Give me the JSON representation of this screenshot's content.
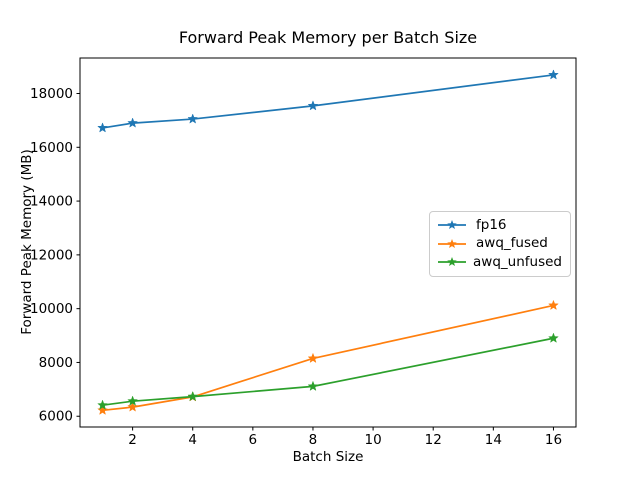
{
  "figure": {
    "background": "#ffffff",
    "text_color": "#000000",
    "spine_color": "#000000"
  },
  "chart_data": {
    "type": "line",
    "title": "Forward Peak Memory per Batch Size",
    "xlabel": "Batch Size",
    "ylabel": "Forward Peak Memory (MB)",
    "x": [
      1,
      2,
      4,
      8,
      16
    ],
    "series": [
      {
        "name": "fp16",
        "color": "#1f77b4",
        "marker": "star",
        "values": [
          16720,
          16900,
          17050,
          17540,
          18690
        ]
      },
      {
        "name": "awq_fused",
        "color": "#ff7f0e",
        "marker": "star",
        "values": [
          6220,
          6340,
          6720,
          8150,
          10120
        ]
      },
      {
        "name": "awq_unfused",
        "color": "#2ca02c",
        "marker": "star",
        "values": [
          6410,
          6560,
          6730,
          7110,
          8900
        ]
      }
    ],
    "xticks": [
      2,
      4,
      6,
      8,
      10,
      12,
      14,
      16
    ],
    "yticks": [
      6000,
      8000,
      10000,
      12000,
      14000,
      16000,
      18000
    ],
    "xlim": [
      0.25,
      16.75
    ],
    "ylim": [
      5600,
      19320
    ],
    "grid": false,
    "legend": {
      "position": "center-right",
      "border_color": "#cccccc",
      "entries": [
        "fp16",
        "awq_fused",
        "awq_unfused"
      ]
    }
  }
}
